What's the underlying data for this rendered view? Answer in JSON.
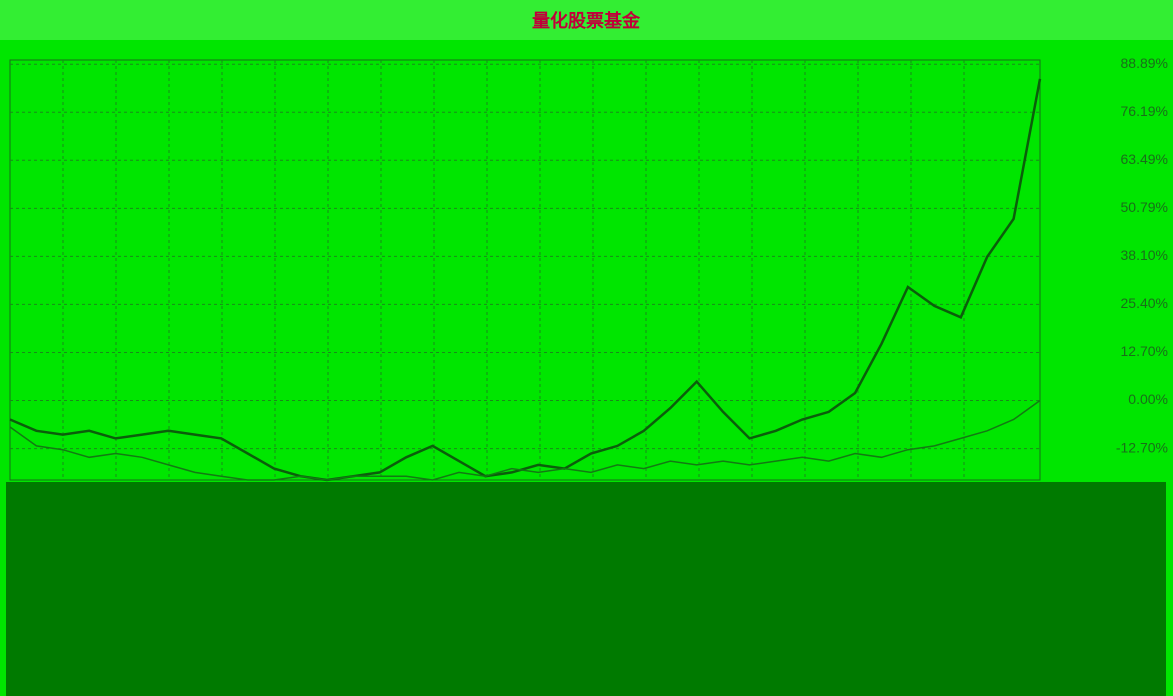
{
  "chart_data": {
    "type": "line",
    "title": "量化股票基金",
    "categories": [
      null,
      null,
      null,
      null,
      null,
      null,
      null,
      null,
      null,
      null,
      null,
      null,
      null,
      null,
      null,
      null,
      null,
      null,
      null,
      null,
      null,
      null,
      null,
      null,
      null,
      null,
      null,
      null,
      null,
      null,
      null,
      null,
      null,
      null,
      null,
      null,
      null,
      null,
      null,
      null
    ],
    "series": [
      {
        "color": "#0b5e0b",
        "values": [
          -5,
          -8,
          -9,
          -8,
          -10,
          -9,
          -8,
          -9,
          -10,
          -14,
          -18,
          -20,
          -21,
          -20,
          -19,
          -15,
          -12,
          -16,
          -20,
          -19,
          -17,
          -18,
          -14,
          -12,
          -8,
          -2,
          5,
          -3,
          -10,
          -8,
          -5,
          -3,
          2,
          15,
          30,
          25,
          22,
          38,
          48,
          85
        ]
      },
      {
        "color": "#137a13",
        "values": [
          -7,
          -12,
          -13,
          -15,
          -14,
          -15,
          -17,
          -19,
          -20,
          -21,
          -21,
          -20,
          -21,
          -20,
          -20,
          -20,
          -21,
          -19,
          -20,
          -18,
          -19,
          -18,
          -19,
          -17,
          -18,
          -16,
          -17,
          -16,
          -17,
          -16,
          -15,
          -16,
          -14,
          -15,
          -13,
          -12,
          -10,
          -8,
          -5,
          0
        ]
      }
    ],
    "ylim": [
      -21,
      90
    ],
    "yticks": [
      {
        "value": -12.7,
        "label": "-12.70%"
      },
      {
        "value": 0,
        "label": "0.00%"
      },
      {
        "value": 12.7,
        "label": "12.70%"
      },
      {
        "value": 25.4,
        "label": "25.40%"
      },
      {
        "value": 38.1,
        "label": "38.10%"
      },
      {
        "value": 50.79,
        "label": "50.79%"
      },
      {
        "value": 63.49,
        "label": "63.49%"
      },
      {
        "value": 76.19,
        "label": "76.19%"
      },
      {
        "value": 88.89,
        "label": "88.89%"
      }
    ],
    "grid": true
  }
}
